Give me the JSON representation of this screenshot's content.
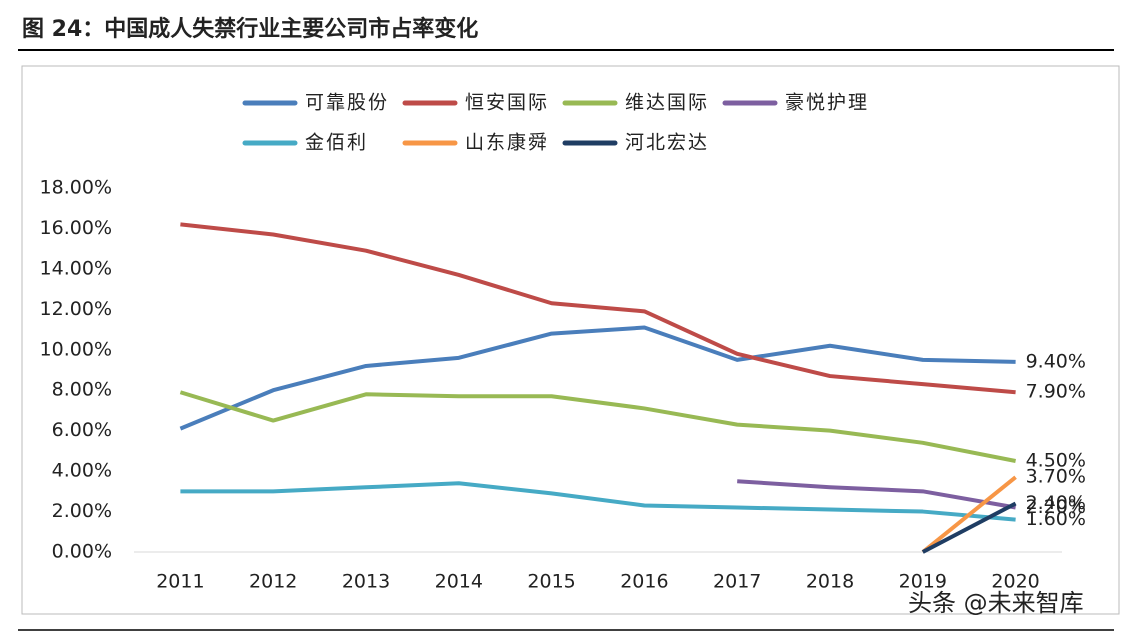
{
  "header": {
    "title": "图 24：中国成人失禁行业主要公司市占率变化"
  },
  "watermark": "头条 @未来智库",
  "chart_data": {
    "type": "line",
    "categories": [
      "2011",
      "2012",
      "2013",
      "2014",
      "2015",
      "2016",
      "2017",
      "2018",
      "2019",
      "2020"
    ],
    "ylim": [
      0,
      18
    ],
    "yticks": [
      {
        "value": 0,
        "label": "0.00%"
      },
      {
        "value": 2,
        "label": "2.00%"
      },
      {
        "value": 4,
        "label": "4.00%"
      },
      {
        "value": 6,
        "label": "6.00%"
      },
      {
        "value": 8,
        "label": "8.00%"
      },
      {
        "value": 10,
        "label": "10.00%"
      },
      {
        "value": 12,
        "label": "12.00%"
      },
      {
        "value": 14,
        "label": "14.00%"
      },
      {
        "value": 16,
        "label": "16.00%"
      },
      {
        "value": 18,
        "label": "18.00%"
      }
    ],
    "grid": false,
    "legend": "top",
    "series": [
      {
        "name": "可靠股份",
        "color": "#4a7ebb",
        "values": [
          6.1,
          8.0,
          9.2,
          9.6,
          10.8,
          11.1,
          9.5,
          10.2,
          9.5,
          9.4
        ],
        "value_labels": [
          null,
          null,
          null,
          null,
          null,
          null,
          null,
          null,
          null,
          "9.40%"
        ]
      },
      {
        "name": "恒安国际",
        "color": "#be4b48",
        "values": [
          16.2,
          15.7,
          14.9,
          13.7,
          12.3,
          11.9,
          9.8,
          8.7,
          8.3,
          7.9
        ],
        "value_labels": [
          null,
          null,
          null,
          null,
          null,
          null,
          null,
          null,
          null,
          "7.90%"
        ]
      },
      {
        "name": "维达国际",
        "color": "#98b954",
        "values": [
          7.9,
          6.5,
          7.8,
          7.7,
          7.7,
          7.1,
          6.3,
          6.0,
          5.4,
          4.5
        ],
        "value_labels": [
          null,
          null,
          null,
          null,
          null,
          null,
          null,
          null,
          null,
          "4.50%"
        ]
      },
      {
        "name": "豪悦护理",
        "color": "#7d5fa0",
        "values": [
          null,
          null,
          null,
          null,
          null,
          null,
          3.5,
          3.2,
          3.0,
          2.2
        ],
        "value_labels": [
          null,
          null,
          null,
          null,
          null,
          null,
          null,
          null,
          null,
          "2.20%"
        ]
      },
      {
        "name": "金佰利",
        "color": "#46aac5",
        "values": [
          3.0,
          3.0,
          3.2,
          3.4,
          2.9,
          2.3,
          2.2,
          2.1,
          2.0,
          1.6
        ],
        "value_labels": [
          null,
          null,
          null,
          null,
          null,
          null,
          null,
          null,
          null,
          "1.60%"
        ]
      },
      {
        "name": "山东康舜",
        "color": "#f79646",
        "values": [
          null,
          null,
          null,
          null,
          null,
          null,
          null,
          null,
          0,
          3.7
        ],
        "value_labels": [
          null,
          null,
          null,
          null,
          null,
          null,
          null,
          null,
          null,
          "3.70%"
        ]
      },
      {
        "name": "河北宏达",
        "color": "#1f3d63",
        "values": [
          null,
          null,
          null,
          null,
          null,
          null,
          null,
          null,
          0,
          2.4
        ],
        "value_labels": [
          null,
          null,
          null,
          null,
          null,
          null,
          null,
          null,
          null,
          "2.40%"
        ]
      }
    ]
  }
}
